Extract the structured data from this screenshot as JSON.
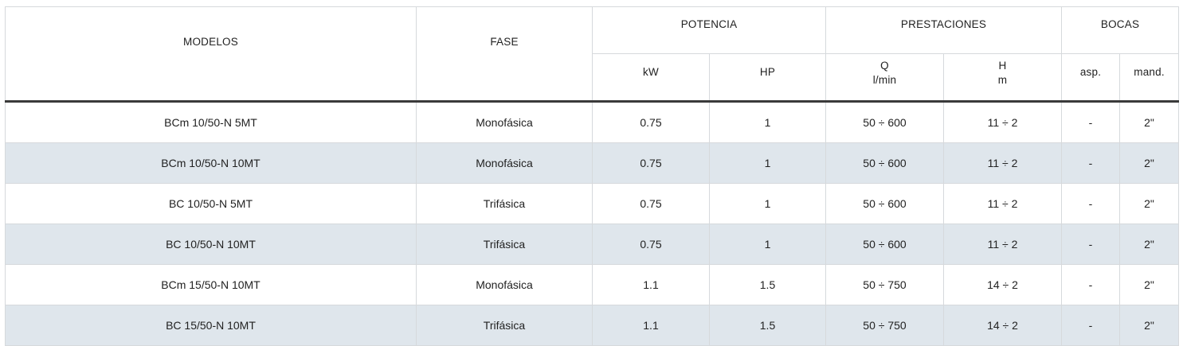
{
  "headers": {
    "modelos": "MODELOS",
    "fase": "FASE",
    "potencia": "POTENCIA",
    "prestaciones": "PRESTACIONES",
    "bocas": "BOCAS",
    "kw": "kW",
    "hp": "HP",
    "q": "Q",
    "q_unit": "l/min",
    "h": "H",
    "h_unit": "m",
    "asp": "asp.",
    "mand": "mand."
  },
  "rows": [
    {
      "modelo": "BCm 10/50-N 5MT",
      "fase": "Monofásica",
      "kw": "0.75",
      "hp": "1",
      "q": "50 ÷ 600",
      "h": "11 ÷ 2",
      "asp": "-",
      "mand": "2\""
    },
    {
      "modelo": "BCm 10/50-N 10MT",
      "fase": "Monofásica",
      "kw": "0.75",
      "hp": "1",
      "q": "50 ÷ 600",
      "h": "11 ÷ 2",
      "asp": "-",
      "mand": "2\""
    },
    {
      "modelo": "BC 10/50-N 5MT",
      "fase": "Trifásica",
      "kw": "0.75",
      "hp": "1",
      "q": "50 ÷ 600",
      "h": "11 ÷ 2",
      "asp": "-",
      "mand": "2\""
    },
    {
      "modelo": "BC 10/50-N 10MT",
      "fase": "Trifásica",
      "kw": "0.75",
      "hp": "1",
      "q": "50 ÷ 600",
      "h": "11 ÷ 2",
      "asp": "-",
      "mand": "2\""
    },
    {
      "modelo": "BCm 15/50-N 10MT",
      "fase": "Monofásica",
      "kw": "1.1",
      "hp": "1.5",
      "q": "50 ÷ 750",
      "h": "14 ÷ 2",
      "asp": "-",
      "mand": "2\""
    },
    {
      "modelo": "BC 15/50-N 10MT",
      "fase": "Trifásica",
      "kw": "1.1",
      "hp": "1.5",
      "q": "50 ÷ 750",
      "h": "14 ÷ 2",
      "asp": "-",
      "mand": "2\""
    }
  ]
}
